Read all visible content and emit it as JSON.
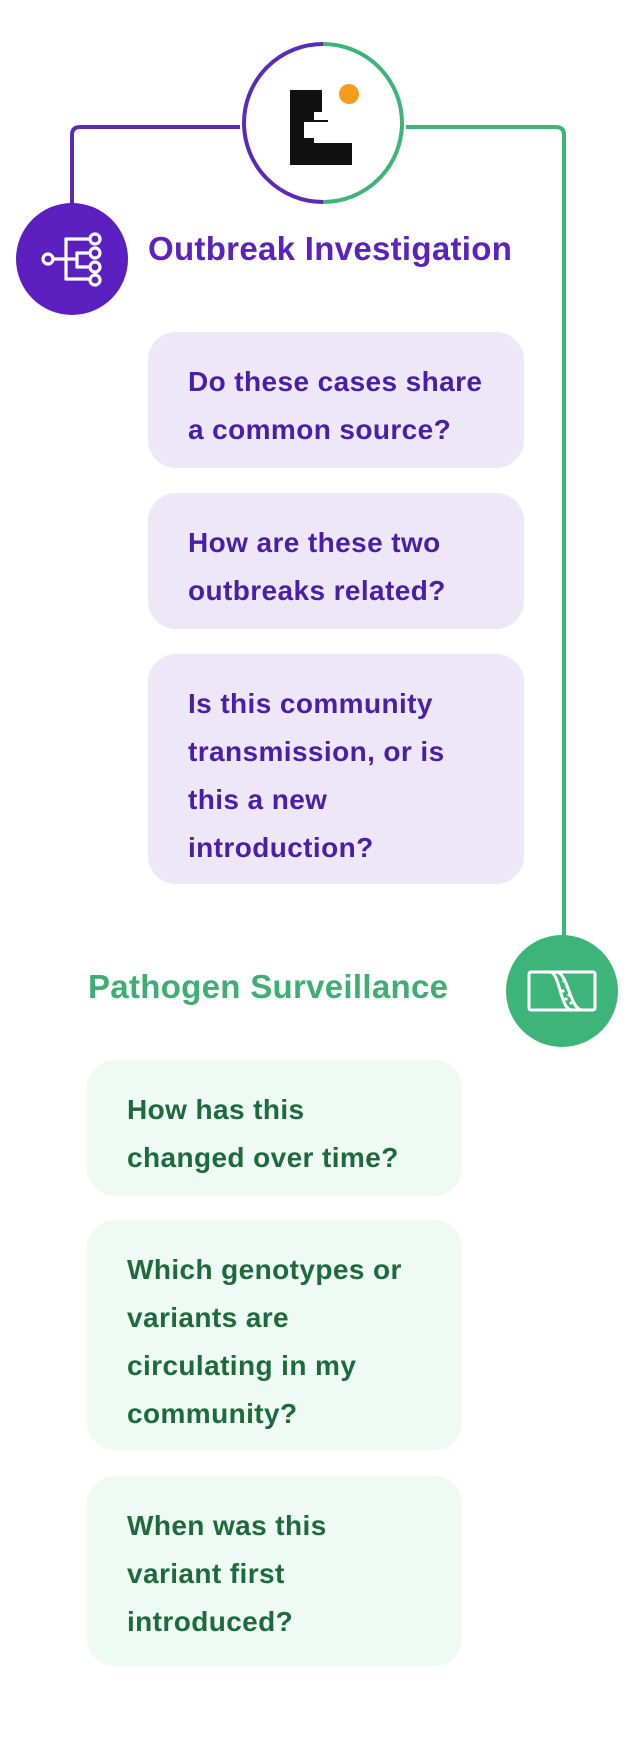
{
  "theme": {
    "purple": "#5b1fbf",
    "purple_line": "#5a2bb8",
    "purple_text": "#4a1fa8",
    "purple_card": "#ede7f7",
    "green": "#3db578",
    "green_text": "#1d6b3d",
    "green_card": "#eefaf3",
    "title_purple": "#5c22bd",
    "title_green": "#3eae73"
  },
  "logo": {
    "icon": "e-logo-icon",
    "dot_color": "#f79b1e"
  },
  "outbreak": {
    "title": "Outbreak Investigation",
    "icon": "phylogenetic-tree-icon",
    "questions": [
      "Do these cases share a common source?",
      "How are these two outbreaks related?",
      "Is this community transmission, or is this a new introduction?"
    ]
  },
  "surveillance": {
    "title": "Pathogen Surveillance",
    "icon": "wave-chart-icon",
    "questions": [
      "How has this changed over time?",
      "Which genotypes or variants are circulating in my community?",
      "When was this variant first introduced?"
    ]
  }
}
